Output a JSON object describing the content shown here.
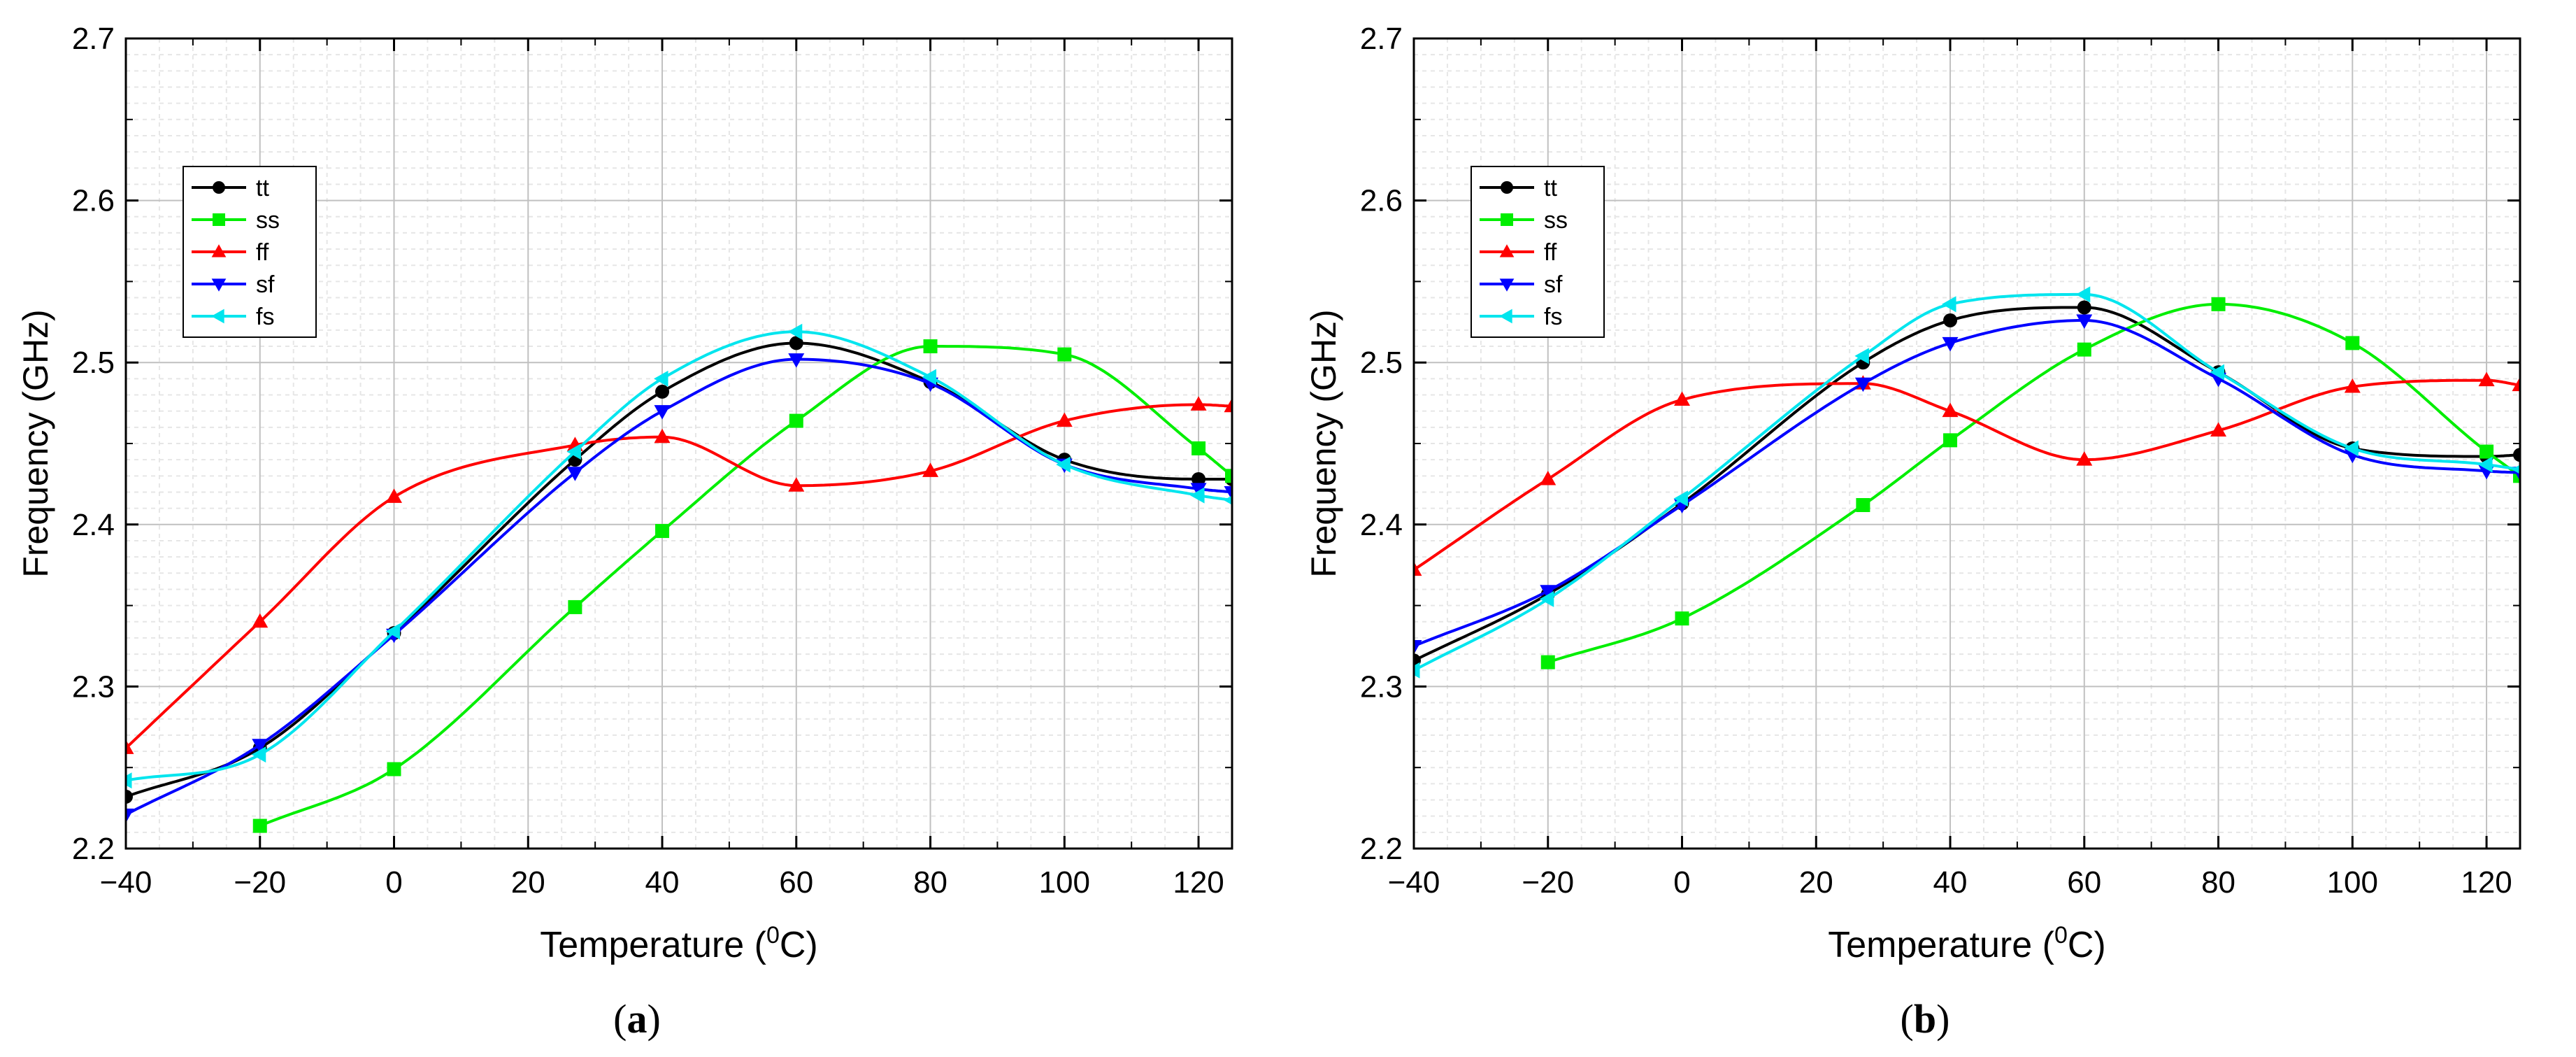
{
  "chart_data": [
    {
      "type": "line",
      "panel_label": "a",
      "xlabel_main": "Temperature (",
      "xlabel_sup": "0",
      "xlabel_tail": "C)",
      "ylabel": "Frequency (GHz)",
      "xlim": [
        -40,
        125
      ],
      "ylim": [
        2.2,
        2.7
      ],
      "x_ticks": [
        -40,
        -20,
        0,
        20,
        40,
        60,
        80,
        100,
        120
      ],
      "x_tick_labels": [
        "−40",
        "−20",
        "0",
        "20",
        "40",
        "60",
        "80",
        "100",
        "120"
      ],
      "y_ticks": [
        2.2,
        2.3,
        2.4,
        2.5,
        2.6,
        2.7
      ],
      "y_tick_labels": [
        "2.2",
        "2.3",
        "2.4",
        "2.5",
        "2.6",
        "2.7"
      ],
      "grid": true,
      "legend_position": "upper-left",
      "series": [
        {
          "name": "tt",
          "color": "#000000",
          "marker": "circle",
          "x": [
            -40,
            -20,
            0,
            27,
            40,
            60,
            80,
            100,
            120,
            125
          ],
          "y": [
            2.232,
            2.262,
            2.333,
            2.44,
            2.482,
            2.512,
            2.488,
            2.44,
            2.428,
            2.428
          ]
        },
        {
          "name": "ss",
          "color": "#00ee00",
          "marker": "square",
          "x": [
            -20,
            0,
            27,
            40,
            60,
            80,
            100,
            120,
            125
          ],
          "y": [
            2.214,
            2.249,
            2.349,
            2.396,
            2.464,
            2.51,
            2.505,
            2.447,
            2.43
          ]
        },
        {
          "name": "ff",
          "color": "#ff0000",
          "marker": "triangle-up",
          "x": [
            -40,
            -20,
            0,
            27,
            40,
            60,
            80,
            100,
            120,
            125
          ],
          "y": [
            2.262,
            2.34,
            2.417,
            2.449,
            2.454,
            2.424,
            2.433,
            2.464,
            2.474,
            2.473
          ]
        },
        {
          "name": "sf",
          "color": "#0000ff",
          "marker": "triangle-down",
          "x": [
            -40,
            -20,
            0,
            27,
            40,
            60,
            80,
            100,
            120,
            125
          ],
          "y": [
            2.221,
            2.264,
            2.332,
            2.432,
            2.47,
            2.502,
            2.487,
            2.437,
            2.422,
            2.42
          ]
        },
        {
          "name": "fs",
          "color": "#00e5ee",
          "marker": "triangle-left",
          "x": [
            -40,
            -20,
            0,
            27,
            40,
            60,
            80,
            100,
            120,
            125
          ],
          "y": [
            2.242,
            2.258,
            2.334,
            2.445,
            2.49,
            2.519,
            2.491,
            2.437,
            2.418,
            2.415
          ]
        }
      ]
    },
    {
      "type": "line",
      "panel_label": "b",
      "xlabel_main": "Temperature (",
      "xlabel_sup": "0",
      "xlabel_tail": "C)",
      "ylabel": "Frequency (GHz)",
      "xlim": [
        -40,
        125
      ],
      "ylim": [
        2.2,
        2.7
      ],
      "x_ticks": [
        -40,
        -20,
        0,
        20,
        40,
        60,
        80,
        100,
        120
      ],
      "x_tick_labels": [
        "−40",
        "−20",
        "0",
        "20",
        "40",
        "60",
        "80",
        "100",
        "120"
      ],
      "y_ticks": [
        2.2,
        2.3,
        2.4,
        2.5,
        2.6,
        2.7
      ],
      "y_tick_labels": [
        "2.2",
        "2.3",
        "2.4",
        "2.5",
        "2.6",
        "2.7"
      ],
      "grid": true,
      "legend_position": "upper-left",
      "series": [
        {
          "name": "tt",
          "color": "#000000",
          "marker": "circle",
          "x": [
            -40,
            -20,
            0,
            27,
            40,
            60,
            80,
            100,
            120,
            125
          ],
          "y": [
            2.316,
            2.357,
            2.413,
            2.5,
            2.526,
            2.534,
            2.494,
            2.447,
            2.442,
            2.443
          ]
        },
        {
          "name": "ss",
          "color": "#00ee00",
          "marker": "square",
          "x": [
            -20,
            0,
            27,
            40,
            60,
            80,
            100,
            120,
            125
          ],
          "y": [
            2.315,
            2.342,
            2.412,
            2.452,
            2.508,
            2.536,
            2.512,
            2.445,
            2.43
          ]
        },
        {
          "name": "ff",
          "color": "#ff0000",
          "marker": "triangle-up",
          "x": [
            -40,
            -20,
            0,
            27,
            40,
            60,
            80,
            100,
            120,
            125
          ],
          "y": [
            2.372,
            2.428,
            2.477,
            2.487,
            2.47,
            2.44,
            2.458,
            2.485,
            2.489,
            2.486
          ]
        },
        {
          "name": "sf",
          "color": "#0000ff",
          "marker": "triangle-down",
          "x": [
            -40,
            -20,
            0,
            27,
            40,
            60,
            80,
            100,
            120,
            125
          ],
          "y": [
            2.325,
            2.359,
            2.412,
            2.487,
            2.512,
            2.526,
            2.49,
            2.443,
            2.433,
            2.432
          ]
        },
        {
          "name": "fs",
          "color": "#00e5ee",
          "marker": "triangle-left",
          "x": [
            -40,
            -20,
            0,
            27,
            40,
            60,
            80,
            100,
            120,
            125
          ],
          "y": [
            2.31,
            2.354,
            2.416,
            2.504,
            2.536,
            2.542,
            2.494,
            2.447,
            2.437,
            2.434
          ]
        }
      ]
    }
  ]
}
